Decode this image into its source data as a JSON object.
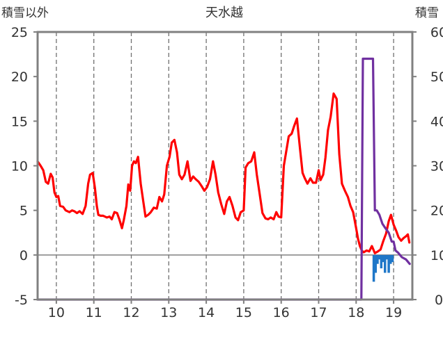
{
  "chart_data": {
    "type": "line",
    "title": "天水越",
    "left_axis_label": "積雪以外",
    "right_axis_label": "積雪",
    "ylim_left": [
      -5,
      25
    ],
    "ylim_right": [
      0,
      60
    ],
    "yticks_left": [
      -5,
      0,
      5,
      10,
      15,
      20,
      25
    ],
    "yticks_right": [
      0,
      10,
      20,
      30,
      40,
      50,
      60
    ],
    "xlim": [
      9.5,
      19.5
    ],
    "xticks": [
      10,
      11,
      12,
      13,
      14,
      15,
      16,
      17,
      18,
      19
    ],
    "xtick_labels": [
      "10",
      "11",
      "12",
      "13",
      "14",
      "15",
      "16",
      "17",
      "18",
      "19"
    ],
    "grid": "vertical dashed",
    "colors": {
      "temperature": "#ff0000",
      "precipitation": "#1f77c8",
      "snow_depth": "#7030a0",
      "frame": "#808080"
    },
    "series": [
      {
        "axis": "left",
        "style": "line",
        "color": "#ff0000",
        "x": [
          9.5,
          9.58,
          9.65,
          9.72,
          9.78,
          9.85,
          9.9,
          9.95,
          10.0,
          10.05,
          10.1,
          10.18,
          10.25,
          10.35,
          10.42,
          10.48,
          10.55,
          10.62,
          10.7,
          10.78,
          10.85,
          10.9,
          10.97,
          11.03,
          11.08,
          11.12,
          11.18,
          11.25,
          11.35,
          11.42,
          11.48,
          11.55,
          11.62,
          11.68,
          11.75,
          11.8,
          11.87,
          11.92,
          11.97,
          12.02,
          12.07,
          12.12,
          12.18,
          12.25,
          12.32,
          12.38,
          12.45,
          12.52,
          12.6,
          12.68,
          12.75,
          12.82,
          12.88,
          12.95,
          13.02,
          13.08,
          13.15,
          13.22,
          13.28,
          13.35,
          13.42,
          13.5,
          13.58,
          13.65,
          13.72,
          13.8,
          13.88,
          13.95,
          14.02,
          14.1,
          14.18,
          14.25,
          14.32,
          14.4,
          14.48,
          14.55,
          14.62,
          14.7,
          14.78,
          14.85,
          14.92,
          15.0,
          15.05,
          15.12,
          15.2,
          15.28,
          15.35,
          15.42,
          15.5,
          15.58,
          15.65,
          15.72,
          15.8,
          15.87,
          15.93,
          16.0,
          16.07,
          16.13,
          16.2,
          16.28,
          16.35,
          16.42,
          16.5,
          16.57,
          16.63,
          16.7,
          16.78,
          16.85,
          16.93,
          17.0,
          17.05,
          17.12,
          17.18,
          17.25,
          17.32,
          17.4,
          17.48,
          17.55,
          17.62,
          17.7,
          17.78,
          17.85,
          17.92,
          18.0,
          18.05,
          18.1,
          18.15,
          18.2,
          18.28,
          18.35,
          18.42,
          18.5,
          18.58,
          18.65,
          18.72,
          18.8,
          18.87,
          18.93,
          19.0,
          19.07,
          19.13,
          19.2,
          19.27,
          19.33,
          19.38,
          19.42
        ],
        "values": [
          10.5,
          10.0,
          9.5,
          8.2,
          8.0,
          9.1,
          8.7,
          7.0,
          6.5,
          6.6,
          5.5,
          5.4,
          5.0,
          4.8,
          5.0,
          4.9,
          4.7,
          4.9,
          4.6,
          5.5,
          8.0,
          9.0,
          9.2,
          7.5,
          5.5,
          4.5,
          4.4,
          4.4,
          4.2,
          4.3,
          4.0,
          4.8,
          4.7,
          4.0,
          3.0,
          3.9,
          5.5,
          7.9,
          7.2,
          10.0,
          10.5,
          10.3,
          11.0,
          8.0,
          6.0,
          4.3,
          4.5,
          4.8,
          5.3,
          5.2,
          6.5,
          6.0,
          6.8,
          10.0,
          11.0,
          12.6,
          12.9,
          11.5,
          9.0,
          8.5,
          9.0,
          10.5,
          8.3,
          8.8,
          8.5,
          8.2,
          7.7,
          7.2,
          7.6,
          8.5,
          10.5,
          9.0,
          7.0,
          5.7,
          4.6,
          6.0,
          6.5,
          5.5,
          4.2,
          3.9,
          4.8,
          5.0,
          9.8,
          10.3,
          10.5,
          11.5,
          9.0,
          7.0,
          4.7,
          4.1,
          4.0,
          4.2,
          4.0,
          4.8,
          4.3,
          4.2,
          10.0,
          11.5,
          13.3,
          13.6,
          14.5,
          15.3,
          12.0,
          9.2,
          8.6,
          8.0,
          8.6,
          8.1,
          8.1,
          9.5,
          8.4,
          9.0,
          10.9,
          14.0,
          15.5,
          18.1,
          17.5,
          11.3,
          8.0,
          7.2,
          6.5,
          5.5,
          4.8,
          3.0,
          1.8,
          1.0,
          0.5,
          0.3,
          0.5,
          0.4,
          1.0,
          0.2,
          0.4,
          0.6,
          1.5,
          2.4,
          3.8,
          4.5,
          3.4,
          2.7,
          2.0,
          1.6,
          1.9,
          2.1,
          2.3,
          1.4
        ]
      },
      {
        "axis": "left",
        "style": "bar",
        "color": "#1f77c8",
        "x": [
          18.47,
          18.52,
          18.57,
          18.62,
          18.67,
          18.72,
          18.77,
          18.82,
          18.87,
          18.92,
          18.97
        ],
        "values": [
          -3.0,
          -2.0,
          -1.0,
          -0.5,
          -1.5,
          -0.8,
          -2.0,
          -0.5,
          -2.0,
          -1.0,
          -0.8
        ]
      },
      {
        "axis": "right",
        "style": "line",
        "color": "#7030a0",
        "x": [
          9.5,
          18.0,
          18.07,
          18.14,
          18.18,
          18.28,
          18.38,
          18.45,
          18.5,
          18.55,
          18.62,
          18.7,
          18.78,
          18.87,
          18.95,
          19.0,
          19.05,
          19.12,
          19.22,
          19.33,
          19.43
        ],
        "values": [
          0.0,
          0.0,
          0.0,
          0.0,
          54.0,
          54.0,
          54.0,
          54.0,
          20.0,
          20.0,
          19.0,
          17.0,
          16.0,
          15.0,
          13.0,
          13.0,
          11.0,
          10.5,
          9.5,
          9.0,
          8.0
        ]
      }
    ]
  }
}
